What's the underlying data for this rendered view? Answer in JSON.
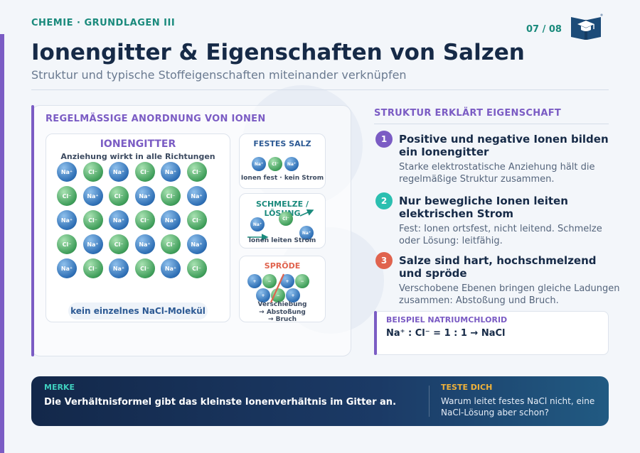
{
  "header": {
    "breadcrumb": "CHEMIE · GRUNDLAGEN III",
    "page_number": "07 / 08",
    "title": "Ionengitter & Eigenschaften von Salzen",
    "subtitle": "Struktur und typische Stoffeigenschaften miteinander verknüpfen",
    "logo_icon": "open-book-graduation-cap-icon"
  },
  "left_panel": {
    "heading": "REGELMÄSSIGE ANORDNUNG VON IONEN",
    "lattice": {
      "title": "IONENGITTER",
      "subtitle": "Anziehung wirkt in alle Richtungen",
      "na_label": "Na⁺",
      "cl_label": "Cl⁻",
      "footer": "kein einzelnes NaCl-Molekül"
    },
    "solid": {
      "title": "FESTES SALZ",
      "caption": "Ionen fest · kein Strom"
    },
    "melt": {
      "title": "SCHMELZE / LÖSUNG",
      "caption": "Ionen leiten Strom"
    },
    "brittle": {
      "title": "SPRÖDE",
      "caption_1": "Verschiebung",
      "caption_2": "→ Abstoßung",
      "caption_3": "→ Bruch",
      "plus": "+",
      "minus": "−"
    }
  },
  "right_panel": {
    "heading": "STRUKTUR ERKLÄRT EIGENSCHAFT",
    "steps": [
      {
        "number": "1",
        "title": "Positive und negative Ionen bilden ein Ionengitter",
        "desc": "Starke elektrostatische Anziehung hält die regelmäßige Struktur zusammen.",
        "color": "#7b5cc4"
      },
      {
        "number": "2",
        "title": "Nur bewegliche Ionen leiten elektrischen Strom",
        "desc": "Fest: Ionen ortsfest, nicht leitend. Schmelze oder Lösung: leitfähig.",
        "color": "#2bbfb0"
      },
      {
        "number": "3",
        "title": "Salze sind hart, hochschmelzend und spröde",
        "desc": "Verschobene Ebenen bringen gleiche Ladungen zusammen: Abstoßung und Bruch.",
        "color": "#e0634e"
      }
    ],
    "example": {
      "label": "BEISPIEL NATRIUMCHLORID",
      "formula": "Na⁺ : Cl⁻ = 1 : 1 → NaCl"
    }
  },
  "footer": {
    "merke_label": "MERKE",
    "merke_text": "Die Verhältnisformel gibt das kleinste Ionenverhältnis im Gitter an.",
    "test_label": "TESTE DICH",
    "test_text": "Warum leitet festes NaCl nicht, eine NaCl-Lösung aber schon?"
  },
  "colors": {
    "accent_purple": "#7b5cc4",
    "accent_teal": "#1a8a7c",
    "title_navy": "#162a47",
    "na_blue": "#2e6fb5",
    "cl_green": "#3f9e5a",
    "melt_teal": "#1a8a7c",
    "brittle_red": "#e0634e",
    "footer_navy": "#13284a"
  }
}
